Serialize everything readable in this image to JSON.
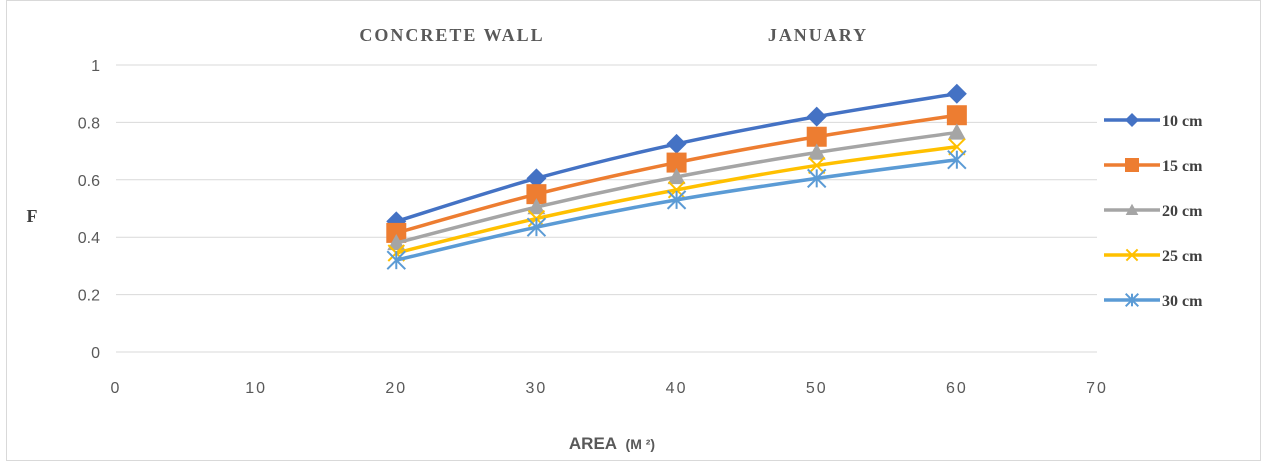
{
  "chart_data": {
    "type": "line",
    "title_left": "CONCRETE WALL",
    "title_right": "JANUARY",
    "xlabel": "AREA",
    "xlabel_unit": "(M ²)",
    "ylabel": "F",
    "xlim": [
      0,
      70
    ],
    "ylim": [
      0,
      1
    ],
    "x_ticks": [
      0,
      10,
      20,
      30,
      40,
      50,
      60,
      70
    ],
    "y_ticks": [
      0,
      0.2,
      0.4,
      0.6,
      0.8,
      1
    ],
    "y_tick_labels": [
      "0",
      "0.2",
      "0.4",
      "0.6",
      "0.8",
      "1"
    ],
    "grid": "horizontal",
    "legend_position": "right",
    "x": [
      20,
      30,
      40,
      50,
      60
    ],
    "series": [
      {
        "name": "10 cm",
        "color": "#4472c4",
        "marker": "diamond",
        "values": [
          0.455,
          0.605,
          0.725,
          0.82,
          0.9
        ]
      },
      {
        "name": "15 cm",
        "color": "#ed7d31",
        "marker": "square",
        "values": [
          0.415,
          0.55,
          0.66,
          0.75,
          0.825
        ]
      },
      {
        "name": "20 cm",
        "color": "#a5a5a5",
        "marker": "triangle",
        "values": [
          0.38,
          0.505,
          0.61,
          0.695,
          0.765
        ]
      },
      {
        "name": "25 cm",
        "color": "#ffc000",
        "marker": "x",
        "values": [
          0.345,
          0.465,
          0.565,
          0.65,
          0.715
        ]
      },
      {
        "name": "30 cm",
        "color": "#5b9bd5",
        "marker": "star",
        "values": [
          0.32,
          0.435,
          0.53,
          0.605,
          0.67
        ]
      }
    ]
  }
}
